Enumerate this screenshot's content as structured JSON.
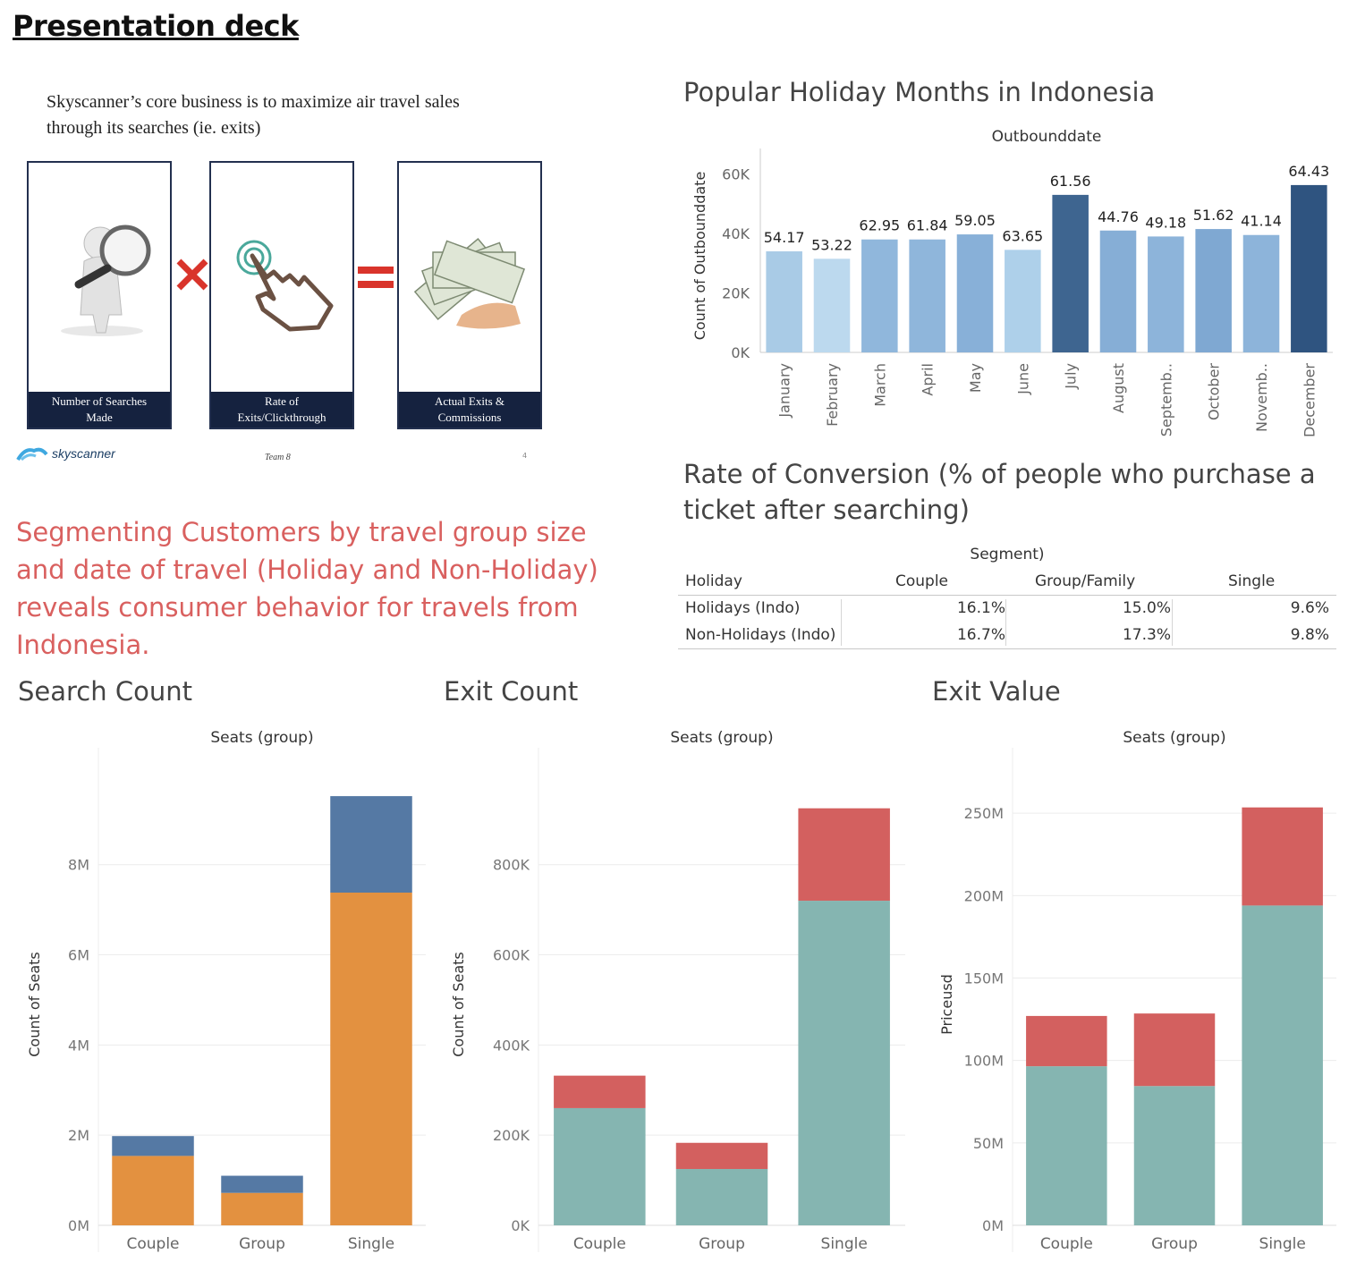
{
  "page": {
    "title": "Presentation deck",
    "insight": "Segmenting Customers by travel group size and date of travel (Holiday and Non-Holiday) reveals consumer behavior for travels from Indonesia."
  },
  "slide": {
    "caption_line1": "Skyscanner’s core business is to maximize air travel sales",
    "caption_line2": "through its searches (ie. exits)",
    "boxes": [
      {
        "label_line1": "Number of Searches",
        "label_line2": "Made"
      },
      {
        "label_line1": "Rate of",
        "label_line2": "Exits/Clickthrough"
      },
      {
        "label_line1": "Actual Exits &",
        "label_line2": "Commissions"
      }
    ],
    "logo_text": "skyscanner",
    "team_text": "Team 8",
    "page_number": "4",
    "colors": {
      "box_border": "#23304f",
      "label_bg": "#15223f",
      "times": "#d9342b",
      "equals": "#d9342b"
    }
  },
  "sections": {
    "months_title": "Popular Holiday Months in Indonesia",
    "conversion_title": "Rate of Conversion (% of people who purchase a ticket after searching)",
    "search_title": "Search Count",
    "exit_title": "Exit Count",
    "value_title": "Exit Value"
  },
  "conversion_table": {
    "segment_header": "Segment)",
    "row_header": "Holiday",
    "columns": [
      "Couple",
      "Group/Family",
      "Single"
    ],
    "rows": [
      {
        "label": "Holidays (Indo)",
        "values": [
          "16.1%",
          "15.0%",
          "9.6%"
        ]
      },
      {
        "label": "Non-Holidays (Indo)",
        "values": [
          "16.7%",
          "17.3%",
          "9.8%"
        ]
      }
    ]
  },
  "chart_data": [
    {
      "type": "bar",
      "title": "Outbounddate",
      "ylabel": "Count of Outbounddate",
      "ylim": [
        0,
        65000
      ],
      "yticks": [
        "0K",
        "20K",
        "40K",
        "60K"
      ],
      "ytick_values": [
        0,
        20000,
        40000,
        60000
      ],
      "categories": [
        "January",
        "February",
        "March",
        "April",
        "May",
        "June",
        "July",
        "August",
        "Septemb..",
        "October",
        "Novemb..",
        "December"
      ],
      "values": [
        34000,
        31500,
        38000,
        38000,
        39700,
        34500,
        53000,
        41000,
        39000,
        41500,
        39500,
        56300
      ],
      "data_labels": [
        "54.17",
        "53.22",
        "62.95",
        "61.84",
        "59.05",
        "63.65",
        "61.56",
        "44.76",
        "49.18",
        "51.62",
        "41.14",
        "64.43"
      ],
      "colors": [
        "#a9cbe6",
        "#bcd9ee",
        "#90b7dc",
        "#8fb6db",
        "#88b0d8",
        "#aed0ea",
        "#3e6590",
        "#86aed6",
        "#8db4da",
        "#7fa8d2",
        "#8db4da",
        "#2f5480"
      ],
      "grid": false
    },
    {
      "type": "bar",
      "stacked": true,
      "title": "Seats (group)",
      "ylabel": "Count of Seats",
      "ylim": [
        0,
        9800000
      ],
      "yticks": [
        "0M",
        "2M",
        "4M",
        "6M",
        "8M"
      ],
      "ytick_values": [
        0,
        2000000,
        4000000,
        6000000,
        8000000
      ],
      "categories": [
        "Couple",
        "Group",
        "Single"
      ],
      "series": [
        {
          "values": [
            1540000,
            720000,
            7380000
          ],
          "color": "#e39140"
        },
        {
          "values": [
            440000,
            380000,
            2140000
          ],
          "color": "#5579a4"
        }
      ],
      "grid": true
    },
    {
      "type": "bar",
      "stacked": true,
      "title": "Seats (group)",
      "ylabel": "Count of Seats",
      "ylim": [
        0,
        980000
      ],
      "yticks": [
        "0K",
        "200K",
        "400K",
        "600K",
        "800K"
      ],
      "ytick_values": [
        0,
        200000,
        400000,
        600000,
        800000
      ],
      "categories": [
        "Couple",
        "Group",
        "Single"
      ],
      "series": [
        {
          "values": [
            260000,
            125000,
            720000
          ],
          "color": "#85b5b1"
        },
        {
          "values": [
            72000,
            58000,
            205000
          ],
          "color": "#d3605f"
        }
      ],
      "grid": true
    },
    {
      "type": "bar",
      "stacked": true,
      "title": "Seats (group)",
      "ylabel": "Priceusd",
      "ylim": [
        0,
        268000000
      ],
      "yticks": [
        "0M",
        "50M",
        "100M",
        "150M",
        "200M",
        "250M"
      ],
      "ytick_values": [
        0,
        50000000,
        100000000,
        150000000,
        200000000,
        250000000
      ],
      "categories": [
        "Couple",
        "Group",
        "Single"
      ],
      "series": [
        {
          "values": [
            96500000,
            84500000,
            194000000
          ],
          "color": "#85b5b1"
        },
        {
          "values": [
            30500000,
            44000000,
            59500000
          ],
          "color": "#d3605f"
        }
      ],
      "grid": true
    }
  ]
}
